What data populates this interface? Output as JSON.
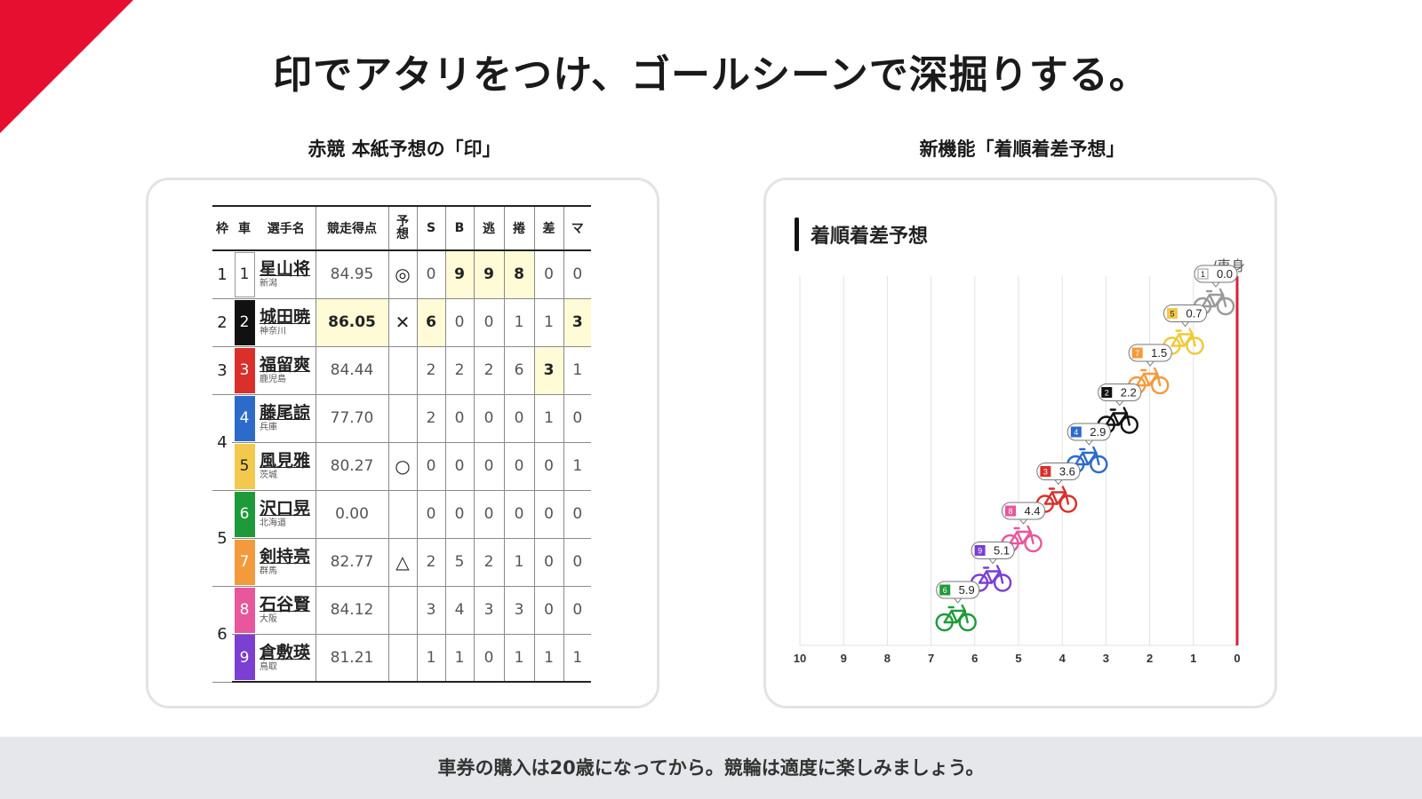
{
  "headline": "印でアタリをつけ、ゴールシーンで深掘りする。",
  "left_section": {
    "title": "赤競 本紙予想の「印」"
  },
  "right_section": {
    "title": "新機能「着順着差予想」"
  },
  "colors": {
    "accent_red": "#e60f2f",
    "highlight_yellow": "#fffbd6",
    "finish_line": "#d6213a"
  },
  "table": {
    "headers": {
      "waku": "枠",
      "car": "車",
      "name": "選手名",
      "score": "競走得点",
      "yoso_1": "予",
      "yoso_2": "想",
      "s": "S",
      "b": "B",
      "nige": "逃",
      "makuri": "捲",
      "sashi": "差",
      "ma": "マ"
    },
    "rows": [
      {
        "waku": "1",
        "car": "1",
        "car_bg": "#ffffff",
        "car_fg": "#222222",
        "name": "星山将",
        "pref": "新潟",
        "score": "84.95",
        "mark": "◎",
        "s": "0",
        "b": "9",
        "nige": "9",
        "makuri": "8",
        "sashi": "0",
        "ma": "0",
        "hl": [
          "b",
          "nige",
          "makuri"
        ]
      },
      {
        "waku": "2",
        "car": "2",
        "car_bg": "#111111",
        "car_fg": "#ffffff",
        "name": "城田暁",
        "pref": "神奈川",
        "score": "86.05",
        "mark": "✕",
        "s": "6",
        "b": "0",
        "nige": "0",
        "makuri": "1",
        "sashi": "1",
        "ma": "3",
        "hl": [
          "score",
          "s",
          "ma"
        ]
      },
      {
        "waku": "3",
        "car": "3",
        "car_bg": "#d9302b",
        "car_fg": "#ffffff",
        "name": "福留爽",
        "pref": "鹿児島",
        "score": "84.44",
        "mark": "",
        "s": "2",
        "b": "2",
        "nige": "2",
        "makuri": "6",
        "sashi": "3",
        "ma": "1",
        "hl": [
          "sashi"
        ]
      },
      {
        "waku": "4",
        "car": "4",
        "car_bg": "#2c6bc9",
        "car_fg": "#ffffff",
        "name": "藤尾諒",
        "pref": "兵庫",
        "score": "77.70",
        "mark": "",
        "s": "2",
        "b": "0",
        "nige": "0",
        "makuri": "0",
        "sashi": "1",
        "ma": "0",
        "hl": []
      },
      {
        "waku": "",
        "car": "5",
        "car_bg": "#f2c94c",
        "car_fg": "#222222",
        "name": "風見雅",
        "pref": "茨城",
        "score": "80.27",
        "mark": "○",
        "s": "0",
        "b": "0",
        "nige": "0",
        "makuri": "0",
        "sashi": "0",
        "ma": "1",
        "hl": []
      },
      {
        "waku": "5",
        "car": "6",
        "car_bg": "#1f9a3a",
        "car_fg": "#ffffff",
        "name": "沢口晃",
        "pref": "北海道",
        "score": "0.00",
        "mark": "",
        "s": "0",
        "b": "0",
        "nige": "0",
        "makuri": "0",
        "sashi": "0",
        "ma": "0",
        "hl": []
      },
      {
        "waku": "",
        "car": "7",
        "car_bg": "#f39a3c",
        "car_fg": "#ffffff",
        "name": "剣持亮",
        "pref": "群馬",
        "score": "82.77",
        "mark": "△",
        "s": "2",
        "b": "5",
        "nige": "2",
        "makuri": "1",
        "sashi": "0",
        "ma": "0",
        "hl": []
      },
      {
        "waku": "6",
        "car": "8",
        "car_bg": "#e8579c",
        "car_fg": "#ffffff",
        "name": "石谷賢",
        "pref": "大阪",
        "score": "84.12",
        "mark": "",
        "s": "3",
        "b": "4",
        "nige": "3",
        "makuri": "3",
        "sashi": "0",
        "ma": "0",
        "hl": []
      },
      {
        "waku": "",
        "car": "9",
        "car_bg": "#7b3fd1",
        "car_fg": "#ffffff",
        "name": "倉敷瑛",
        "pref": "鳥取",
        "score": "81.21",
        "mark": "",
        "s": "1",
        "b": "1",
        "nige": "0",
        "makuri": "1",
        "sashi": "1",
        "ma": "1",
        "hl": []
      }
    ]
  },
  "chart": {
    "title": "着順着差予想",
    "unit": "/車身",
    "bike_icon": "bicycle-icon"
  },
  "chart_data": {
    "type": "scatter",
    "title": "着順着差予想",
    "xlabel": "/車身",
    "ylabel": "",
    "xlim": [
      10,
      0
    ],
    "x_ticks": [
      "10",
      "9",
      "8",
      "7",
      "6",
      "5",
      "4",
      "3",
      "2",
      "1",
      "0"
    ],
    "grid": true,
    "points": [
      {
        "car": "1",
        "margin": 0.0,
        "label": "0.0",
        "color": "#9a9a9a",
        "badge_bg": "#ffffff",
        "badge_fg": "#222222"
      },
      {
        "car": "5",
        "margin": 0.7,
        "label": "0.7",
        "color": "#efc93a",
        "badge_bg": "#f2c94c",
        "badge_fg": "#222222"
      },
      {
        "car": "7",
        "margin": 1.5,
        "label": "1.5",
        "color": "#f39a3c",
        "badge_bg": "#f39a3c",
        "badge_fg": "#ffffff"
      },
      {
        "car": "2",
        "margin": 2.2,
        "label": "2.2",
        "color": "#111111",
        "badge_bg": "#111111",
        "badge_fg": "#ffffff"
      },
      {
        "car": "4",
        "margin": 2.9,
        "label": "2.9",
        "color": "#2c6bc9",
        "badge_bg": "#2c6bc9",
        "badge_fg": "#ffffff"
      },
      {
        "car": "3",
        "margin": 3.6,
        "label": "3.6",
        "color": "#d9302b",
        "badge_bg": "#d9302b",
        "badge_fg": "#ffffff"
      },
      {
        "car": "8",
        "margin": 4.4,
        "label": "4.4",
        "color": "#e8579c",
        "badge_bg": "#e8579c",
        "badge_fg": "#ffffff"
      },
      {
        "car": "9",
        "margin": 5.1,
        "label": "5.1",
        "color": "#7b3fd1",
        "badge_bg": "#7b3fd1",
        "badge_fg": "#ffffff"
      },
      {
        "car": "6",
        "margin": 5.9,
        "label": "5.9",
        "color": "#1f9a3a",
        "badge_bg": "#1f9a3a",
        "badge_fg": "#ffffff"
      }
    ]
  },
  "footer": {
    "text": "車券の購入は20歳になってから。競輪は適度に楽しみましょう。"
  }
}
